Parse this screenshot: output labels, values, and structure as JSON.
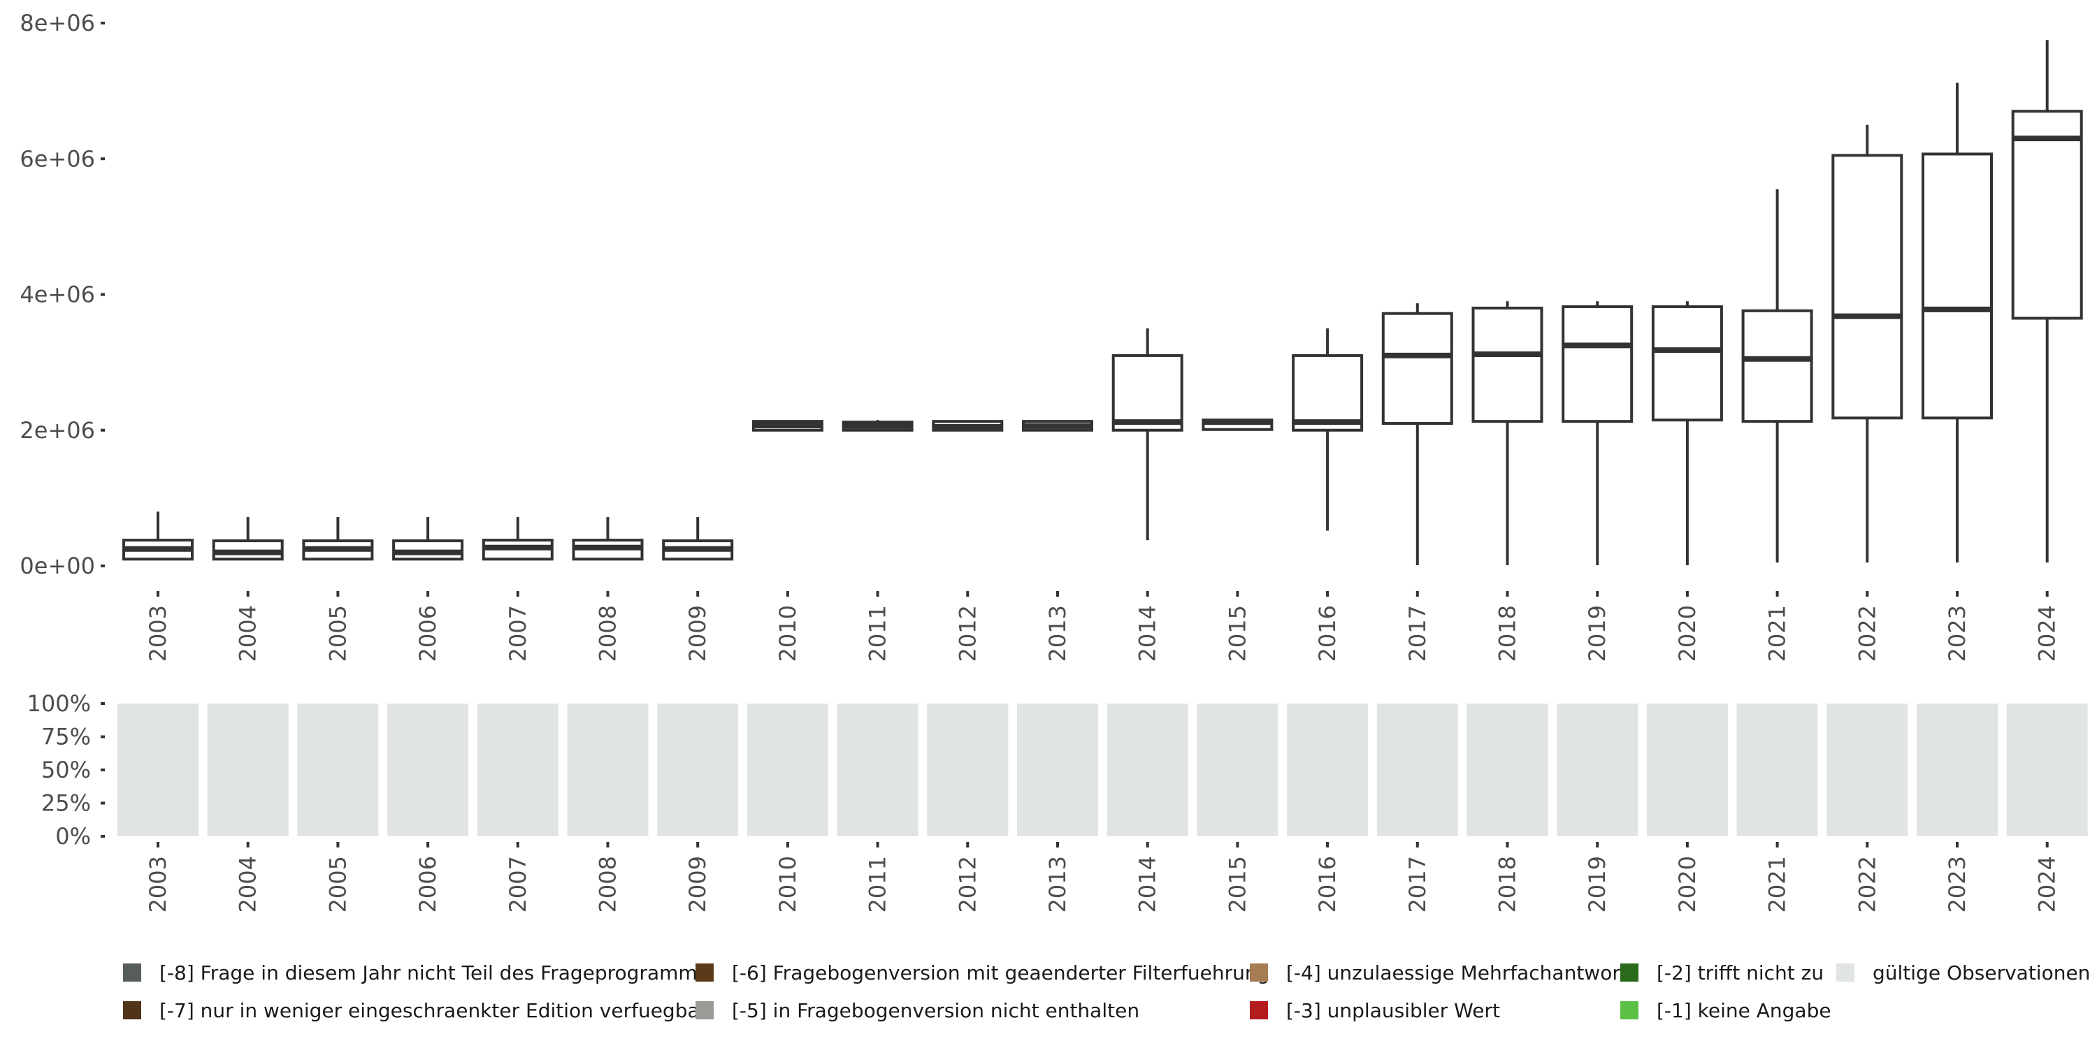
{
  "chart_data": [
    {
      "type": "box",
      "title": "",
      "xlabel": "",
      "ylabel": "",
      "ylim": [
        -300000,
        8100000
      ],
      "yticks": [
        {
          "value": 0,
          "label": "0e+00"
        },
        {
          "value": 2000000,
          "label": "2e+06"
        },
        {
          "value": 4000000,
          "label": "4e+06"
        },
        {
          "value": 6000000,
          "label": "6e+06"
        },
        {
          "value": 8000000,
          "label": "8e+06"
        }
      ],
      "categories": [
        "2003",
        "2004",
        "2005",
        "2006",
        "2007",
        "2008",
        "2009",
        "2010",
        "2011",
        "2012",
        "2013",
        "2014",
        "2015",
        "2016",
        "2017",
        "2018",
        "2019",
        "2020",
        "2021",
        "2022",
        "2023",
        "2024"
      ],
      "boxes": [
        {
          "year": "2003",
          "min": 90000,
          "q1": 100000,
          "median": 250000,
          "q3": 380000,
          "max": 800000
        },
        {
          "year": "2004",
          "min": 90000,
          "q1": 100000,
          "median": 200000,
          "q3": 370000,
          "max": 720000
        },
        {
          "year": "2005",
          "min": 90000,
          "q1": 100000,
          "median": 250000,
          "q3": 370000,
          "max": 720000
        },
        {
          "year": "2006",
          "min": 90000,
          "q1": 100000,
          "median": 200000,
          "q3": 370000,
          "max": 720000
        },
        {
          "year": "2007",
          "min": 90000,
          "q1": 100000,
          "median": 270000,
          "q3": 380000,
          "max": 720000
        },
        {
          "year": "2008",
          "min": 90000,
          "q1": 100000,
          "median": 270000,
          "q3": 380000,
          "max": 720000
        },
        {
          "year": "2009",
          "min": 90000,
          "q1": 100000,
          "median": 250000,
          "q3": 370000,
          "max": 720000
        },
        {
          "year": "2010",
          "min": 2000000,
          "q1": 2000000,
          "median": 2070000,
          "q3": 2130000,
          "max": 2130000
        },
        {
          "year": "2011",
          "min": 2000000,
          "q1": 2000000,
          "median": 2060000,
          "q3": 2120000,
          "max": 2150000
        },
        {
          "year": "2012",
          "min": 2000000,
          "q1": 2000000,
          "median": 2050000,
          "q3": 2130000,
          "max": 2130000
        },
        {
          "year": "2013",
          "min": 2000000,
          "q1": 2000000,
          "median": 2060000,
          "q3": 2130000,
          "max": 2130000
        },
        {
          "year": "2014",
          "min": 380000,
          "q1": 2000000,
          "median": 2120000,
          "q3": 3100000,
          "max": 3500000
        },
        {
          "year": "2015",
          "min": 2000000,
          "q1": 2010000,
          "median": 2120000,
          "q3": 2150000,
          "max": 2160000
        },
        {
          "year": "2016",
          "min": 520000,
          "q1": 2000000,
          "median": 2120000,
          "q3": 3100000,
          "max": 3500000
        },
        {
          "year": "2017",
          "min": 10000,
          "q1": 2100000,
          "median": 3100000,
          "q3": 3720000,
          "max": 3870000
        },
        {
          "year": "2018",
          "min": 10000,
          "q1": 2130000,
          "median": 3120000,
          "q3": 3800000,
          "max": 3900000
        },
        {
          "year": "2019",
          "min": 10000,
          "q1": 2130000,
          "median": 3250000,
          "q3": 3820000,
          "max": 3900000
        },
        {
          "year": "2020",
          "min": 10000,
          "q1": 2150000,
          "median": 3180000,
          "q3": 3820000,
          "max": 3900000
        },
        {
          "year": "2021",
          "min": 50000,
          "q1": 2130000,
          "median": 3050000,
          "q3": 3760000,
          "max": 5550000
        },
        {
          "year": "2022",
          "min": 50000,
          "q1": 2180000,
          "median": 3680000,
          "q3": 6050000,
          "max": 6500000
        },
        {
          "year": "2023",
          "min": 50000,
          "q1": 2180000,
          "median": 3780000,
          "q3": 6070000,
          "max": 7120000
        },
        {
          "year": "2024",
          "min": 50000,
          "q1": 3650000,
          "median": 6300000,
          "q3": 6700000,
          "max": 7750000
        }
      ]
    },
    {
      "type": "bar",
      "stacked": true,
      "percent": true,
      "ylim": [
        0,
        100
      ],
      "yticks": [
        {
          "value": 0,
          "label": "0%"
        },
        {
          "value": 25,
          "label": "25%"
        },
        {
          "value": 50,
          "label": "50%"
        },
        {
          "value": 75,
          "label": "75%"
        },
        {
          "value": 100,
          "label": "100%"
        }
      ],
      "categories": [
        "2003",
        "2004",
        "2005",
        "2006",
        "2007",
        "2008",
        "2009",
        "2010",
        "2011",
        "2012",
        "2013",
        "2014",
        "2015",
        "2016",
        "2017",
        "2018",
        "2019",
        "2020",
        "2021",
        "2022",
        "2023",
        "2024"
      ],
      "series": [
        {
          "name": "gültige Observationen",
          "color": "#e1e5e1",
          "values": [
            100,
            100,
            100,
            100,
            100,
            100,
            100,
            100,
            100,
            100,
            100,
            100,
            100,
            100,
            100,
            100,
            100,
            100,
            100,
            100,
            100,
            100
          ]
        }
      ]
    }
  ],
  "legend": {
    "items": [
      {
        "label": "[-8] Frage in diesem Jahr nicht Teil des Frageprogramms",
        "color": "#575e59"
      },
      {
        "label": "[-7] nur in weniger eingeschraenkter Edition verfuegbar",
        "color": "#4f3418"
      },
      {
        "label": "[-6] Fragebogenversion mit geaenderter Filterfuehrung",
        "color": "#5c3a19"
      },
      {
        "label": "[-5] in Fragebogenversion nicht enthalten",
        "color": "#9a9a97"
      },
      {
        "label": "[-4] unzulaessige Mehrfachantwort",
        "color": "#a67c52"
      },
      {
        "label": "[-3] unplausibler Wert",
        "color": "#b21c1c"
      },
      {
        "label": "[-2] trifft nicht zu",
        "color": "#2a6a1a"
      },
      {
        "label": "[-1] keine Angabe",
        "color": "#5cbf46"
      },
      {
        "label": "gültige Observationen",
        "color": "#e1e5e1"
      }
    ]
  }
}
